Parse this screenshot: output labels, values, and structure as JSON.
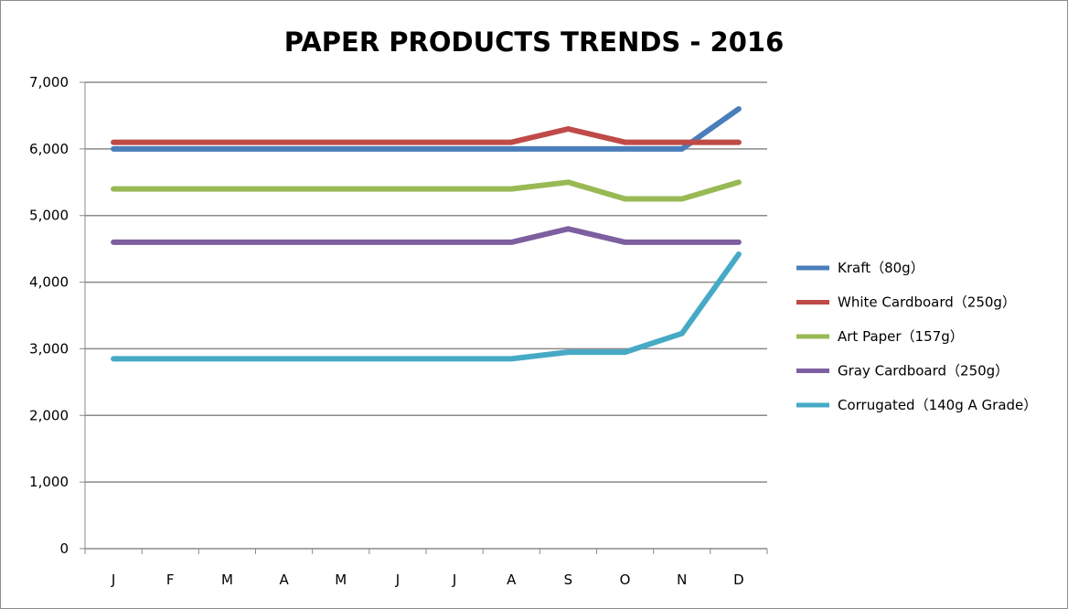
{
  "chart_data": {
    "type": "line",
    "title": "PAPER PRODUCTS TRENDS - 2016",
    "xlabel": "",
    "ylabel": "",
    "categories": [
      "J",
      "F",
      "M",
      "A",
      "M",
      "J",
      "J",
      "A",
      "S",
      "O",
      "N",
      "D"
    ],
    "ylim": [
      0,
      7000
    ],
    "yticks": [
      0,
      1000,
      2000,
      3000,
      4000,
      5000,
      6000,
      7000
    ],
    "ytick_labels": [
      "0",
      "1,000",
      "2,000",
      "3,000",
      "4,000",
      "5,000",
      "6,000",
      "7,000"
    ],
    "grid": "horizontal",
    "legend_position": "right",
    "series": [
      {
        "name": "Kraft（80g）",
        "color": "#4a7ebb",
        "values": [
          6000,
          6000,
          6000,
          6000,
          6000,
          6000,
          6000,
          6000,
          6000,
          6000,
          6000,
          6600
        ]
      },
      {
        "name": "White Cardboard（250g）",
        "color": "#be4b48",
        "values": [
          6100,
          6100,
          6100,
          6100,
          6100,
          6100,
          6100,
          6100,
          6300,
          6100,
          6100,
          6100
        ]
      },
      {
        "name": "Art Paper（157g）",
        "color": "#98b954",
        "values": [
          5400,
          5400,
          5400,
          5400,
          5400,
          5400,
          5400,
          5400,
          5500,
          5250,
          5250,
          5500
        ]
      },
      {
        "name": "Gray Cardboard（250g）",
        "color": "#7d5fa0",
        "values": [
          4600,
          4600,
          4600,
          4600,
          4600,
          4600,
          4600,
          4600,
          4800,
          4600,
          4600,
          4600
        ]
      },
      {
        "name": "Corrugated（140g A Grade）",
        "color": "#46aac5",
        "values": [
          2850,
          2850,
          2850,
          2850,
          2850,
          2850,
          2850,
          2850,
          2950,
          2950,
          3230,
          4420
        ]
      }
    ]
  }
}
